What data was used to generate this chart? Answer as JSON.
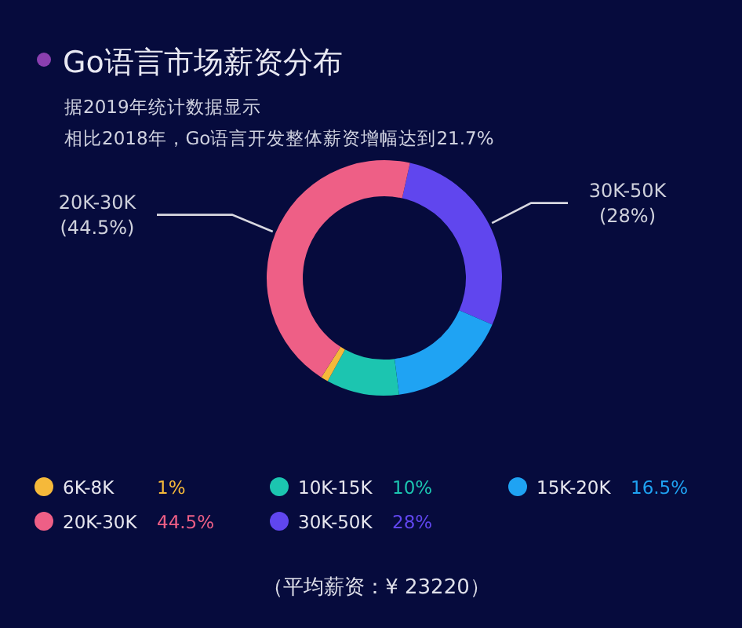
{
  "chart_data": {
    "type": "donut",
    "title": "Go语言市场薪资分布",
    "subtitle": "据2019年统计数据显示",
    "categories": [
      "6K-8K",
      "10K-15K",
      "15K-20K",
      "20K-30K",
      "30K-50K"
    ],
    "values": [
      1,
      10,
      16.5,
      44.5,
      28
    ],
    "colors": [
      "#f5b93a",
      "#1cc5b0",
      "#1fa3f3",
      "#ee5f86",
      "#6046ee"
    ],
    "value_labels": [
      "1%",
      "10%",
      "16.5%",
      "44.5%",
      "28%"
    ],
    "legend": "bottom",
    "annotations": [
      "相比2018年，Go语言开发整体薪资增幅达到21.7%",
      "（平均薪资：¥ 23220）",
      {
        "text": "(44.5%)",
        "x": "20K-30K"
      },
      {
        "text": "(28%)",
        "x": "30K-50K"
      }
    ]
  }
}
